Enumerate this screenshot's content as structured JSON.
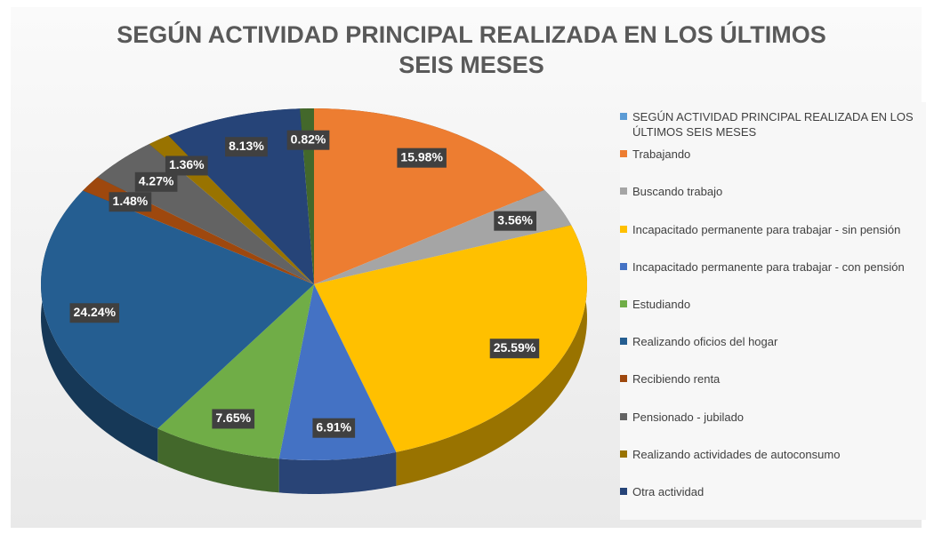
{
  "chart_data": {
    "type": "pie3d",
    "title": "SEGÚN ACTIVIDAD PRINCIPAL REALIZADA EN LOS ÚLTIMOS SEIS MESES",
    "categories": [
      "SEGÚN ACTIVIDAD PRINCIPAL REALIZADA EN LOS ÚLTIMOS SEIS MESES",
      "Trabajando",
      "Buscando trabajo",
      "Incapacitado permanente para trabajar - sin pensión",
      "Incapacitado permanente para trabajar - con pensión",
      "Estudiando",
      "Realizando oficios del hogar",
      "Recibiendo renta",
      "Pensionado - jubilado",
      "Realizando actividades de autoconsumo",
      "Otra actividad",
      null
    ],
    "values": [
      null,
      15.98,
      3.56,
      25.59,
      6.91,
      7.65,
      24.24,
      1.48,
      4.27,
      1.36,
      8.13,
      0.82
    ],
    "value_labels": [
      null,
      "15.98%",
      "3.56%",
      "25.59%",
      "6.91%",
      "7.65%",
      "24.24%",
      "1.48%",
      "4.27%",
      "1.36%",
      "8.13%",
      "0.82%"
    ],
    "colors": [
      "#5b9bd5",
      "#ed7d31",
      "#a5a5a5",
      "#ffc000",
      "#4472c4",
      "#70ad47",
      "#255e91",
      "#9e480e",
      "#636363",
      "#997300",
      "#264478",
      "#43682b"
    ],
    "legend": "right"
  }
}
